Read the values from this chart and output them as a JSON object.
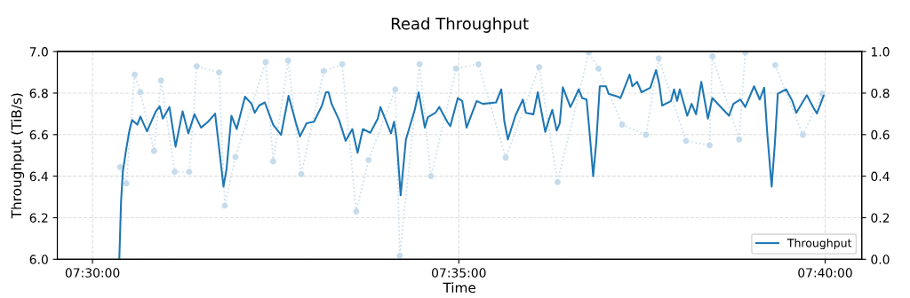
{
  "chart_data": {
    "type": "line",
    "title": "Read Throughput",
    "xlabel": "Time",
    "ylabel": "Throughput (TiB/s)",
    "xlim": [
      7.492,
      7.675
    ],
    "xticks": [
      {
        "value": 7.5,
        "label": "07:30:00"
      },
      {
        "value": 7.583333,
        "label": "07:35:00"
      },
      {
        "value": 7.666667,
        "label": "07:40:00"
      }
    ],
    "ylim": [
      6.0,
      7.0
    ],
    "yticks": [
      {
        "value": 6,
        "label": "6.0"
      },
      6.2,
      6.4,
      6.6,
      6.8,
      {
        "value": 7,
        "label": "7.0"
      }
    ],
    "y2lim": [
      0.0,
      1.0
    ],
    "y2ticks": [
      {
        "value": 0,
        "label": "0.0"
      },
      0.2,
      0.4,
      0.6,
      0.8,
      {
        "value": 1,
        "label": "1.0"
      }
    ],
    "grid": true,
    "legend": "bottom right",
    "series": [
      {
        "color": "#c6dcec",
        "marker": "circle",
        "line_style": "dotted",
        "x": [
          7.5063,
          7.5077,
          7.5096,
          7.5109,
          7.514,
          7.5156,
          7.5187,
          7.522,
          7.5237,
          7.5288,
          7.5301,
          7.5325,
          7.5394,
          7.5411,
          7.5445,
          7.5475,
          7.5526,
          7.5568,
          7.56,
          7.5628,
          7.5689,
          7.5699,
          7.5744,
          7.577,
          7.5827,
          7.5878,
          7.594,
          7.6016,
          7.6058,
          7.6129,
          7.6151,
          7.6205,
          7.6259,
          7.6288,
          7.635,
          7.6404,
          7.641,
          7.6471,
          7.6485,
          7.6544,
          7.6553,
          7.6616,
          7.666
        ],
        "values": [
          6.443,
          6.365,
          6.889,
          6.804,
          6.521,
          6.861,
          6.421,
          6.421,
          6.929,
          6.899,
          6.258,
          6.492,
          6.949,
          6.471,
          6.957,
          6.41,
          6.906,
          6.939,
          6.23,
          6.478,
          6.818,
          6.017,
          6.939,
          6.4,
          6.918,
          6.939,
          6.489,
          6.925,
          6.372,
          6.996,
          6.918,
          6.648,
          6.599,
          6.967,
          6.57,
          6.549,
          6.977,
          6.577,
          6.996,
          null,
          6.935,
          6.599,
          6.797
        ]
      },
      {
        "name": "Throughput",
        "color": "#1f77b4",
        "marker": "none",
        "line_style": "solid",
        "x": [
          7.5061,
          7.5065,
          7.5069,
          7.5076,
          7.5084,
          7.509,
          7.5102,
          7.5109,
          7.5124,
          7.5144,
          7.5153,
          7.516,
          7.5175,
          7.5189,
          7.5205,
          7.5218,
          7.5232,
          7.5247,
          7.5263,
          7.5279,
          7.5295,
          7.5298,
          7.5305,
          7.5316,
          7.5328,
          7.5347,
          7.5362,
          7.5369,
          7.5379,
          7.5392,
          7.5411,
          7.5429,
          7.5446,
          7.5463,
          7.5472,
          7.5487,
          7.5504,
          7.5522,
          7.5531,
          7.5537,
          7.5544,
          7.5561,
          7.5576,
          7.5591,
          7.5603,
          7.5615,
          7.5632,
          7.5649,
          7.5655,
          7.5679,
          7.5686,
          7.5692,
          7.5701,
          7.5713,
          7.5733,
          7.5742,
          7.5756,
          7.5763,
          7.578,
          7.5789,
          7.5807,
          7.5814,
          7.5831,
          7.5841,
          7.5851,
          7.5874,
          7.5888,
          7.5918,
          7.593,
          7.5937,
          7.5945,
          7.5962,
          7.5979,
          7.5986,
          7.6003,
          7.6013,
          7.603,
          7.6038,
          7.6046,
          7.6056,
          7.6063,
          7.607,
          7.6087,
          7.6094,
          7.6106,
          7.6114,
          7.6124,
          7.6131,
          7.6139,
          7.6146,
          7.6154,
          7.6168,
          7.6174,
          7.6195,
          7.6201,
          7.6222,
          7.6228,
          7.6239,
          7.6249,
          7.6269,
          7.6282,
          7.6289,
          7.6296,
          7.6316,
          7.6323,
          7.633,
          7.6336,
          7.6353,
          7.6363,
          7.6373,
          7.6385,
          7.64,
          7.641,
          7.6448,
          7.6458,
          7.6474,
          7.6485,
          7.6505,
          7.6518,
          7.6528,
          7.6535,
          7.6545,
          7.6552,
          7.6559,
          7.6578,
          7.6592,
          7.6601,
          7.6625,
          7.6641,
          7.6648,
          7.6663
        ],
        "values": [
          6.0,
          6.279,
          6.421,
          6.521,
          6.62,
          6.67,
          6.648,
          6.687,
          6.616,
          6.712,
          6.736,
          6.677,
          6.733,
          6.542,
          6.712,
          6.606,
          6.698,
          6.634,
          6.662,
          6.701,
          6.407,
          6.35,
          6.435,
          6.691,
          6.627,
          6.783,
          6.748,
          6.705,
          6.74,
          6.755,
          6.648,
          6.599,
          6.787,
          6.655,
          6.591,
          6.655,
          6.662,
          6.74,
          6.804,
          6.804,
          6.748,
          6.67,
          6.57,
          6.627,
          6.513,
          6.627,
          6.609,
          6.677,
          6.733,
          6.606,
          6.662,
          6.577,
          6.308,
          6.577,
          6.719,
          6.804,
          6.634,
          6.684,
          6.705,
          6.733,
          6.662,
          6.641,
          6.776,
          6.762,
          6.634,
          6.762,
          6.748,
          6.755,
          6.818,
          6.662,
          6.577,
          6.691,
          6.769,
          6.705,
          6.698,
          6.804,
          6.613,
          6.67,
          6.719,
          6.62,
          6.655,
          6.828,
          6.733,
          6.762,
          6.818,
          6.776,
          6.769,
          6.606,
          6.4,
          6.563,
          6.833,
          6.833,
          6.797,
          6.783,
          6.776,
          6.889,
          6.833,
          6.854,
          6.804,
          6.826,
          6.911,
          6.847,
          6.74,
          6.762,
          6.818,
          6.762,
          6.818,
          6.691,
          6.748,
          6.698,
          6.854,
          6.677,
          6.776,
          6.691,
          6.748,
          6.769,
          6.733,
          6.833,
          6.769,
          6.826,
          6.606,
          6.35,
          6.549,
          6.797,
          6.818,
          6.762,
          6.705,
          6.79,
          6.726,
          6.702,
          6.787
        ]
      }
    ]
  }
}
